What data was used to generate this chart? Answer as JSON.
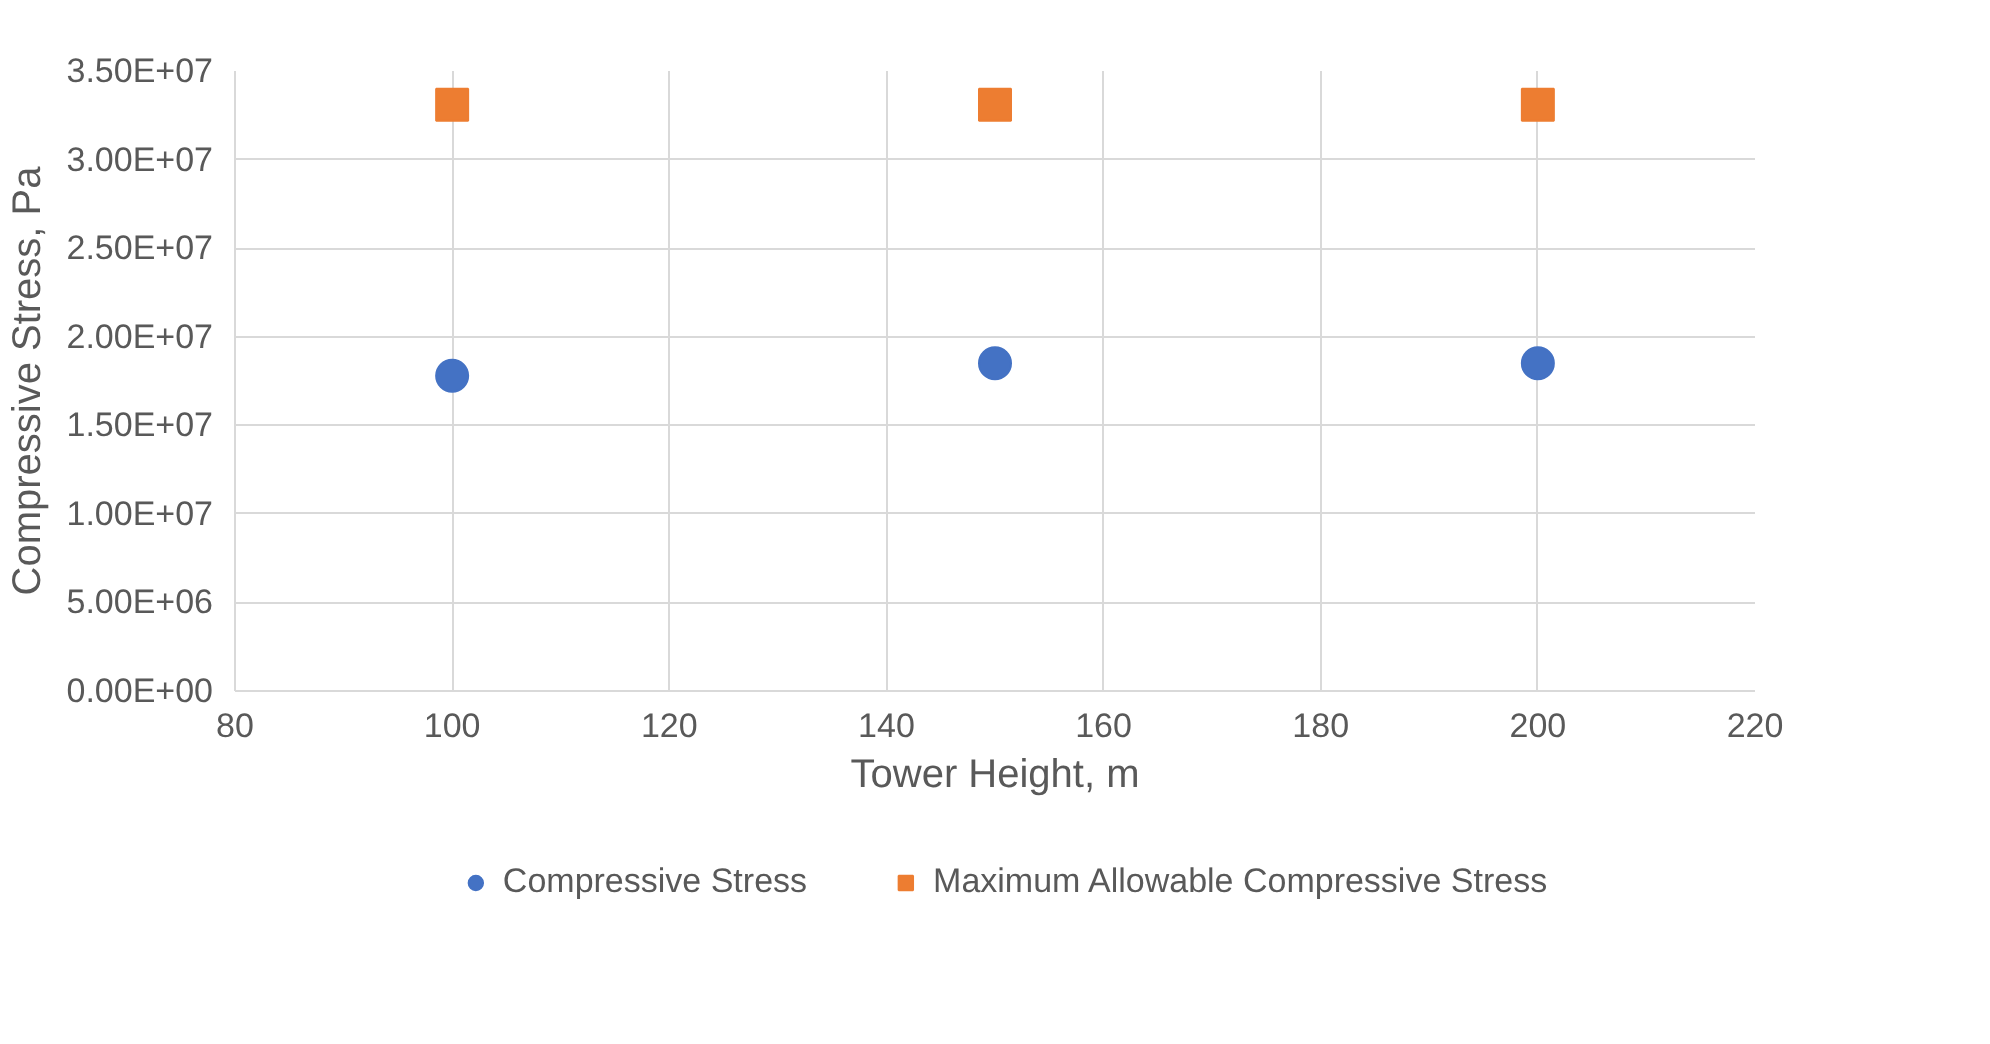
{
  "chart_data": {
    "type": "scatter",
    "xlabel": "Tower Height, m",
    "ylabel": "Compressive Stress, Pa",
    "xlim": [
      80,
      220
    ],
    "xticks": [
      80,
      100,
      120,
      140,
      160,
      180,
      200,
      220
    ],
    "ylim": [
      0,
      35000000
    ],
    "yticks": [
      {
        "value": 0,
        "label": "0.00E+00"
      },
      {
        "value": 5000000,
        "label": "5.00E+06"
      },
      {
        "value": 10000000,
        "label": "1.00E+07"
      },
      {
        "value": 15000000,
        "label": "1.50E+07"
      },
      {
        "value": 20000000,
        "label": "2.00E+07"
      },
      {
        "value": 25000000,
        "label": "2.50E+07"
      },
      {
        "value": 30000000,
        "label": "3.00E+07"
      },
      {
        "value": 35000000,
        "label": "3.50E+07"
      }
    ],
    "x": [
      100,
      150,
      200
    ],
    "series": [
      {
        "name": "Compressive Stress",
        "color": "#4472c4",
        "marker": "circle",
        "values": [
          17800000,
          18500000,
          18500000
        ]
      },
      {
        "name": "Maximum Allowable Compressive Stress",
        "color": "#ed7d31",
        "marker": "square",
        "values": [
          33100000,
          33100000,
          33100000
        ]
      }
    ],
    "grid": true,
    "legend": "bottom"
  }
}
